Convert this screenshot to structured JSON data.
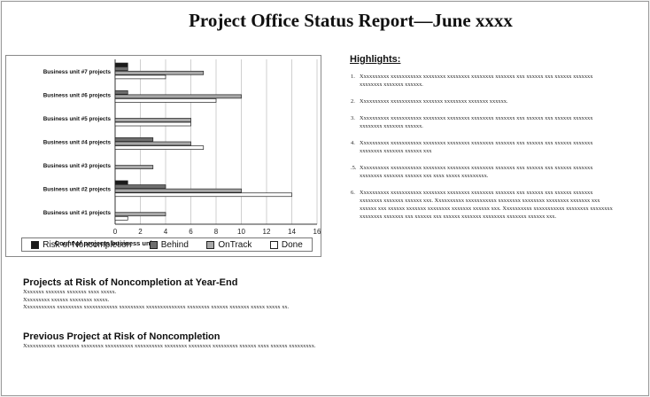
{
  "title": "Project Office Status Report—June xxxx",
  "chart_data": {
    "type": "bar",
    "orientation": "horizontal",
    "categories": [
      "Business unit #7 projects",
      "Business unit #6 projects",
      "Business unit #5 projects",
      "Business unit #4 projects",
      "Business unit #3 projects",
      "Business unit #2 projects",
      "Business unit #1 projects"
    ],
    "series": [
      {
        "name": "Risk of Noncompletion",
        "values": [
          1,
          0,
          0,
          0,
          0,
          1,
          0
        ],
        "color": "#1a1a1a"
      },
      {
        "name": "Behind",
        "values": [
          1,
          1,
          0,
          3,
          0,
          4,
          0
        ],
        "color": "#6e6e6e"
      },
      {
        "name": "OnTrack",
        "values": [
          7,
          10,
          6,
          6,
          3,
          10,
          4
        ],
        "color": "#a8a8a8"
      },
      {
        "name": "Done",
        "values": [
          4,
          8,
          6,
          7,
          0,
          14,
          1
        ],
        "color": "#ffffff"
      }
    ],
    "xlabel": "Count of projects business units",
    "xlim": [
      0,
      16
    ],
    "xticks": [
      0,
      2,
      4,
      6,
      8,
      10,
      12,
      14,
      16
    ],
    "grid": true,
    "legend": "bottom"
  },
  "highlights": {
    "title": "Highlights:",
    "items": [
      {
        "num": "1.",
        "text": "Xxxxxxxxxx xxxxxxxxxxx xxxxxxxx xxxxxxxx xxxxxxxx xxxxxxx xxx xxxxxx xxx xxxxxx xxxxxxx xxxxxxxx xxxxxxx xxxxxx."
      },
      {
        "num": "2.",
        "text": "Xxxxxxxxxx xxxxxxxxxxx xxxxxxx xxxxxxxx xxxxxxx xxxxxx."
      },
      {
        "num": "3.",
        "text": "Xxxxxxxxxx xxxxxxxxxxx xxxxxxxx xxxxxxxx xxxxxxxx xxxxxxx xxx xxxxxx xxx xxxxxx xxxxxxx xxxxxxxx xxxxxxx xxxxxx."
      },
      {
        "num": "4.",
        "text": "Xxxxxxxxxx xxxxxxxxxxx xxxxxxxx xxxxxxxx xxxxxxxx xxxxxxx xxx xxxxxx xxx xxxxxx xxxxxxx xxxxxxxx xxxxxxx xxxxxx xxx"
      },
      {
        "num": ".5.",
        "text": "Xxxxxxxxxx xxxxxxxxxxx xxxxxxxx xxxxxxxx xxxxxxxx xxxxxxx xxx xxxxxx xxx xxxxxx xxxxxxx xxxxxxxx xxxxxxx xxxxxx xxx xxxx xxxxx xxxxxxxxx."
      },
      {
        "num": "6.",
        "text": "Xxxxxxxxxx xxxxxxxxxxx xxxxxxxx xxxxxxxx xxxxxxxx xxxxxxx xxx xxxxxx xxx xxxxxx xxxxxxx xxxxxxxx xxxxxxx xxxxxx xxx. Xxxxxxxxxx xxxxxxxxxxx xxxxxxxx xxxxxxxx xxxxxxxx xxxxxxx xxx xxxxxx xxx xxxxxx xxxxxxx xxxxxxxx xxxxxxx xxxxxx xxx. Xxxxxxxxxx xxxxxxxxxxx xxxxxxxx xxxxxxxx xxxxxxxx xxxxxxx xxx xxxxxx xxx xxxxxx xxxxxxx xxxxxxxx xxxxxxx xxxxxx xxx."
      }
    ]
  },
  "at_risk": {
    "title": "Projects at Risk of Noncompletion at Year-End",
    "lines": [
      "Xxxxxxx xxxxxxx xxxxxxx xxxx xxxxx.",
      "Xxxxxxxxx xxxxxx xxxxxxxx xxxxx.",
      "Xxxxxxxxxxx xxxxxxxxx xxxxxxxxxxxx xxxxxxxxx xxxxxxxxxxxxxx xxxxxxxx xxxxxx xxxxxxx xxxxx xxxxx xx."
    ]
  },
  "previous": {
    "title": "Previous Project at Risk of Noncompletion",
    "lines": [
      "Xxxxxxxxxxx xxxxxxxx xxxxxxxx xxxxxxxxxx xxxxxxxxxx xxxxxxxx xxxxxxxx xxxxxxxxx xxxxxx xxxx xxxxxx xxxxxxxxx."
    ]
  }
}
